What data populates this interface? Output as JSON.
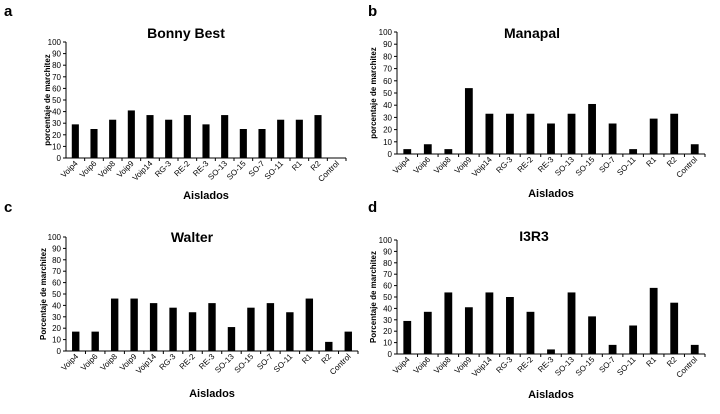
{
  "chart_data": [
    {
      "panel_label": "a",
      "type": "bar",
      "title": "Bonny Best",
      "ylabel": "porcentaje de marchitez",
      "xlabel": "Aislados",
      "ylim": [
        0,
        100
      ],
      "yticks": [
        0,
        10,
        20,
        30,
        40,
        50,
        60,
        70,
        80,
        90,
        100
      ],
      "categories": [
        "Voip4",
        "Voip6",
        "Voip8",
        "Voip9",
        "Voip14",
        "RG-3",
        "RE-2",
        "RE-3",
        "SO-13",
        "SO-15",
        "SO-7",
        "SO-11",
        "R1",
        "R2",
        "Control"
      ],
      "values": [
        29,
        25,
        33,
        41,
        37,
        33,
        37,
        29,
        37,
        25,
        25,
        33,
        33,
        37,
        0
      ]
    },
    {
      "panel_label": "b",
      "type": "bar",
      "title": "Manapal",
      "ylabel": "porcentaje de marchitez",
      "xlabel": "Aislados",
      "ylim": [
        0,
        100
      ],
      "yticks": [
        0,
        10,
        20,
        30,
        40,
        50,
        60,
        70,
        80,
        90,
        100
      ],
      "categories": [
        "Voip4",
        "Voip6",
        "Voip8",
        "Voip9",
        "Voip14",
        "RG-3",
        "RE-2",
        "RE-3",
        "SO-13",
        "SO-15",
        "SO-7",
        "SO-11",
        "R1",
        "R2",
        "Control"
      ],
      "values": [
        4,
        8,
        4,
        54,
        33,
        33,
        33,
        25,
        33,
        41,
        25,
        4,
        29,
        33,
        8
      ]
    },
    {
      "panel_label": "c",
      "type": "bar",
      "title": "Walter",
      "ylabel": "Porcentaje de marchitez",
      "xlabel": "Aislados",
      "ylim": [
        0,
        100
      ],
      "yticks": [
        0,
        10,
        20,
        30,
        40,
        50,
        60,
        70,
        80,
        90,
        100
      ],
      "categories": [
        "Voip4",
        "Voip6",
        "Voip8",
        "Voip9",
        "Voip14",
        "RG-3",
        "RE-2",
        "RE-3",
        "SO-13",
        "SO-15",
        "SO-7",
        "SO-11",
        "R1",
        "R2",
        "Control"
      ],
      "values": [
        17,
        17,
        46,
        46,
        42,
        38,
        34,
        42,
        21,
        38,
        42,
        34,
        46,
        8,
        17
      ]
    },
    {
      "panel_label": "d",
      "type": "bar",
      "title": "I3R3",
      "ylabel": "Porcentaje de marchitez",
      "xlabel": "Aislados",
      "ylim": [
        0,
        100
      ],
      "yticks": [
        0,
        10,
        20,
        30,
        40,
        50,
        60,
        70,
        80,
        90,
        100
      ],
      "categories": [
        "Voip4",
        "Voip6",
        "Voip8",
        "Voip9",
        "Voip14",
        "RG-3",
        "RE-2",
        "RE-3",
        "SO-13",
        "SO-15",
        "SO-7",
        "SO-11",
        "R1",
        "R2",
        "Control"
      ],
      "values": [
        29,
        37,
        54,
        41,
        54,
        50,
        37,
        4,
        54,
        33,
        8,
        25,
        58,
        45,
        8
      ]
    }
  ]
}
